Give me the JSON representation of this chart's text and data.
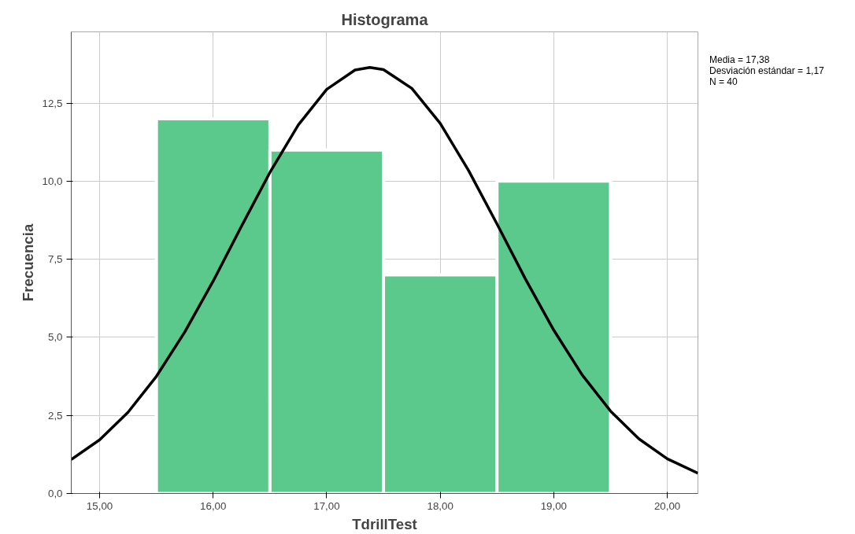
{
  "chart_data": {
    "type": "histogram",
    "title": "Histograma",
    "xlabel": "TdrillTest",
    "ylabel": "Frecuencia",
    "bins": [
      15.5,
      16.5,
      17.5,
      18.5,
      19.5
    ],
    "values": [
      12,
      11,
      7,
      10
    ],
    "color": "#5ac98b",
    "series": [
      {
        "type": "line",
        "color": "#000000",
        "x": [
          14.75,
          15.0,
          15.25,
          15.5,
          15.75,
          16.0,
          16.25,
          16.5,
          16.75,
          17.0,
          17.25,
          17.38,
          17.5,
          17.75,
          18.0,
          18.25,
          18.5,
          18.75,
          19.0,
          19.25,
          19.5,
          19.75,
          20.0,
          20.27
        ],
        "values": [
          1.09,
          1.72,
          2.6,
          3.75,
          5.17,
          6.8,
          8.56,
          10.28,
          11.8,
          12.94,
          13.56,
          13.64,
          13.57,
          12.97,
          11.85,
          10.34,
          8.63,
          6.87,
          5.23,
          3.8,
          2.64,
          1.75,
          1.11,
          0.65
        ]
      }
    ],
    "xlim": [
      14.75,
      20.27
    ],
    "xticks": [
      {
        "value": 15,
        "label": "15,00"
      },
      {
        "value": 16,
        "label": "16,00"
      },
      {
        "value": 17,
        "label": "17,00"
      },
      {
        "value": 18,
        "label": "18,00"
      },
      {
        "value": 19,
        "label": "19,00"
      },
      {
        "value": 20,
        "label": "20,00"
      }
    ],
    "ylim": [
      0,
      14.78
    ],
    "yticks": [
      {
        "value": 0,
        "label": "0,0"
      },
      {
        "value": 2.5,
        "label": "2,5"
      },
      {
        "value": 5,
        "label": "5,0"
      },
      {
        "value": 7.5,
        "label": "7,5"
      },
      {
        "value": 10,
        "label": "10,0"
      },
      {
        "value": 12.5,
        "label": "12,5"
      }
    ],
    "grid": true,
    "annotations": [
      "Media = 17,38",
      "Desviación estándar = 1,17",
      "N = 40"
    ]
  }
}
